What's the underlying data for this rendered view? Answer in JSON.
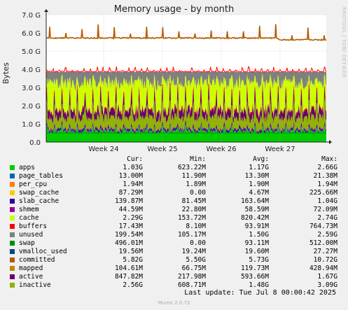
{
  "chart_data": {
    "type": "area",
    "title": "Memory usage - by month",
    "ylabel": "Bytes",
    "ylim": [
      0,
      7.0
    ],
    "y_unit": "G",
    "yticks": [
      "0.0",
      "1.0 G",
      "2.0 G",
      "3.0 G",
      "4.0 G",
      "5.0 G",
      "6.0 G",
      "7.0 G"
    ],
    "x_ticks": [
      "Week 24",
      "Week 25",
      "Week 26",
      "Week 27"
    ],
    "grid": true,
    "columns": {
      "cur": "Cur:",
      "min": "Min:",
      "avg": "Avg:",
      "max": "Max:"
    },
    "series": [
      {
        "name": "apps",
        "color": "#00cc00",
        "cur": "1.03G",
        "min": "623.22M",
        "avg": "1.17G",
        "max": "2.66G"
      },
      {
        "name": "page_tables",
        "color": "#0066b3",
        "cur": "13.00M",
        "min": "11.90M",
        "avg": "13.30M",
        "max": "21.38M"
      },
      {
        "name": "per_cpu",
        "color": "#ff8000",
        "cur": "1.94M",
        "min": "1.89M",
        "avg": "1.90M",
        "max": "1.94M"
      },
      {
        "name": "swap_cache",
        "color": "#ffcc00",
        "cur": "87.29M",
        "min": "0.00",
        "avg": "4.67M",
        "max": "225.66M"
      },
      {
        "name": "slab_cache",
        "color": "#330099",
        "cur": "139.87M",
        "min": "81.45M",
        "avg": "163.64M",
        "max": "1.04G"
      },
      {
        "name": "shmem",
        "color": "#990099",
        "cur": "44.59M",
        "min": "22.80M",
        "avg": "58.59M",
        "max": "72.09M"
      },
      {
        "name": "cache",
        "color": "#ccff00",
        "cur": "2.29G",
        "min": "153.72M",
        "avg": "820.42M",
        "max": "2.74G"
      },
      {
        "name": "buffers",
        "color": "#ff0000",
        "cur": "17.43M",
        "min": "8.10M",
        "avg": "93.91M",
        "max": "764.73M"
      },
      {
        "name": "unused",
        "color": "#808080",
        "cur": "199.54M",
        "min": "105.17M",
        "avg": "1.50G",
        "max": "2.59G"
      },
      {
        "name": "swap",
        "color": "#008f00",
        "cur": "496.01M",
        "min": "0.00",
        "avg": "93.11M",
        "max": "512.00M"
      },
      {
        "name": "vmalloc_used",
        "color": "#00487d",
        "cur": "19.56M",
        "min": "19.24M",
        "avg": "19.60M",
        "max": "27.27M"
      },
      {
        "name": "committed",
        "color": "#b35a00",
        "cur": "5.82G",
        "min": "5.50G",
        "avg": "5.73G",
        "max": "10.72G"
      },
      {
        "name": "mapped",
        "color": "#b38f00",
        "cur": "104.61M",
        "min": "66.75M",
        "avg": "119.73M",
        "max": "428.94M"
      },
      {
        "name": "active",
        "color": "#6b006b",
        "cur": "847.82M",
        "min": "217.98M",
        "avg": "593.66M",
        "max": "1.67G"
      },
      {
        "name": "inactive",
        "color": "#8fb300",
        "cur": "2.56G",
        "min": "608.71M",
        "avg": "1.48G",
        "max": "3.09G"
      }
    ]
  },
  "side_label": "RRDTOOL / TOBI OETIKER",
  "footer": "Last update: Tue Jul  8 00:00:42 2025",
  "munin": "Munin 2.0.73"
}
